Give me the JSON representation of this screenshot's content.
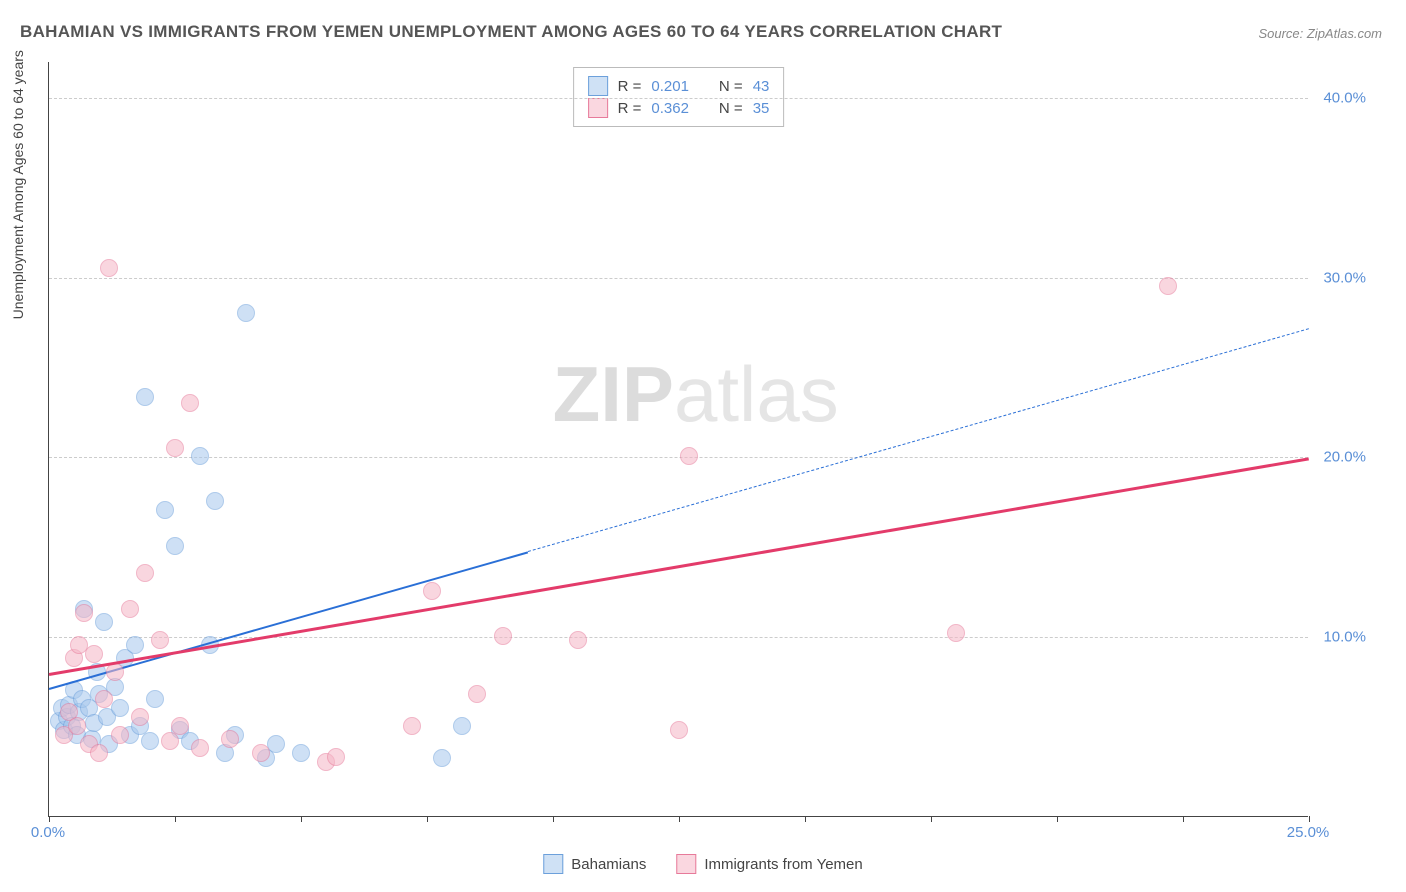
{
  "title": "BAHAMIAN VS IMMIGRANTS FROM YEMEN UNEMPLOYMENT AMONG AGES 60 TO 64 YEARS CORRELATION CHART",
  "source": "Source: ZipAtlas.com",
  "ylabel": "Unemployment Among Ages 60 to 64 years",
  "watermark_zip": "ZIP",
  "watermark_atlas": "atlas",
  "chart": {
    "type": "scatter",
    "xlim": [
      0,
      25
    ],
    "ylim": [
      0,
      42
    ],
    "xtick_positions": [
      0,
      2.5,
      5,
      7.5,
      10,
      12.5,
      15,
      17.5,
      20,
      22.5,
      25
    ],
    "xtick_labels_shown": {
      "0": "0.0%",
      "25": "25.0%"
    },
    "ytick_positions": [
      10,
      20,
      30,
      40
    ],
    "ytick_labels": [
      "10.0%",
      "20.0%",
      "30.0%",
      "40.0%"
    ],
    "grid_color": "#cccccc",
    "axis_color": "#444444",
    "background_color": "#ffffff",
    "tick_label_color": "#5a8fd6",
    "marker_radius": 9,
    "series": [
      {
        "name": "Bahamians",
        "color_fill": "#a7c8ed",
        "color_stroke": "#6ca0db",
        "fill_opacity": 0.55,
        "R": "0.201",
        "N": "43",
        "trend": {
          "x1": 0,
          "y1": 7.2,
          "x2": 9.5,
          "y2": 14.8,
          "solid_color": "#2a6fd6",
          "dash_to_x": 25,
          "dash_to_y": 27.2,
          "width": 2
        },
        "points": [
          [
            0.2,
            5.3
          ],
          [
            0.25,
            6.0
          ],
          [
            0.3,
            4.8
          ],
          [
            0.35,
            5.5
          ],
          [
            0.4,
            6.2
          ],
          [
            0.45,
            5.0
          ],
          [
            0.5,
            7.0
          ],
          [
            0.55,
            4.5
          ],
          [
            0.6,
            5.8
          ],
          [
            0.65,
            6.5
          ],
          [
            0.7,
            11.5
          ],
          [
            0.8,
            6.0
          ],
          [
            0.85,
            4.3
          ],
          [
            0.9,
            5.2
          ],
          [
            0.95,
            8.0
          ],
          [
            1.0,
            6.8
          ],
          [
            1.1,
            10.8
          ],
          [
            1.15,
            5.5
          ],
          [
            1.2,
            4.0
          ],
          [
            1.3,
            7.2
          ],
          [
            1.4,
            6.0
          ],
          [
            1.5,
            8.8
          ],
          [
            1.6,
            4.5
          ],
          [
            1.7,
            9.5
          ],
          [
            1.8,
            5.0
          ],
          [
            1.9,
            23.3
          ],
          [
            2.0,
            4.2
          ],
          [
            2.1,
            6.5
          ],
          [
            2.3,
            17.0
          ],
          [
            2.5,
            15.0
          ],
          [
            2.6,
            4.8
          ],
          [
            2.8,
            4.2
          ],
          [
            3.0,
            20.0
          ],
          [
            3.2,
            9.5
          ],
          [
            3.3,
            17.5
          ],
          [
            3.5,
            3.5
          ],
          [
            3.7,
            4.5
          ],
          [
            3.9,
            28.0
          ],
          [
            4.3,
            3.2
          ],
          [
            4.5,
            4.0
          ],
          [
            5.0,
            3.5
          ],
          [
            7.8,
            3.2
          ],
          [
            8.2,
            5.0
          ]
        ]
      },
      {
        "name": "Immigrants from Yemen",
        "color_fill": "#f5b6c6",
        "color_stroke": "#e77a9a",
        "fill_opacity": 0.55,
        "R": "0.362",
        "N": "35",
        "trend": {
          "x1": 0,
          "y1": 8.0,
          "x2": 25,
          "y2": 20.0,
          "solid_color": "#e33b6a",
          "dash_to_x": 25,
          "dash_to_y": 20.0,
          "width": 2.5
        },
        "points": [
          [
            0.3,
            4.5
          ],
          [
            0.4,
            5.8
          ],
          [
            0.5,
            8.8
          ],
          [
            0.55,
            5.0
          ],
          [
            0.6,
            9.5
          ],
          [
            0.7,
            11.3
          ],
          [
            0.8,
            4.0
          ],
          [
            0.9,
            9.0
          ],
          [
            1.0,
            3.5
          ],
          [
            1.1,
            6.5
          ],
          [
            1.2,
            30.5
          ],
          [
            1.3,
            8.0
          ],
          [
            1.4,
            4.5
          ],
          [
            1.6,
            11.5
          ],
          [
            1.8,
            5.5
          ],
          [
            1.9,
            13.5
          ],
          [
            2.2,
            9.8
          ],
          [
            2.4,
            4.2
          ],
          [
            2.5,
            20.5
          ],
          [
            2.6,
            5.0
          ],
          [
            2.8,
            23.0
          ],
          [
            3.0,
            3.8
          ],
          [
            3.6,
            4.3
          ],
          [
            4.2,
            3.5
          ],
          [
            5.5,
            3.0
          ],
          [
            5.7,
            3.3
          ],
          [
            7.2,
            5.0
          ],
          [
            7.6,
            12.5
          ],
          [
            8.5,
            6.8
          ],
          [
            9.0,
            10.0
          ],
          [
            12.5,
            4.8
          ],
          [
            12.7,
            20.0
          ],
          [
            18.0,
            10.2
          ],
          [
            22.2,
            29.5
          ],
          [
            10.5,
            9.8
          ]
        ]
      }
    ]
  },
  "legend_top": {
    "r_label": "R =",
    "n_label": "N ="
  },
  "legend_bottom": {
    "items": [
      "Bahamians",
      "Immigrants from Yemen"
    ]
  }
}
